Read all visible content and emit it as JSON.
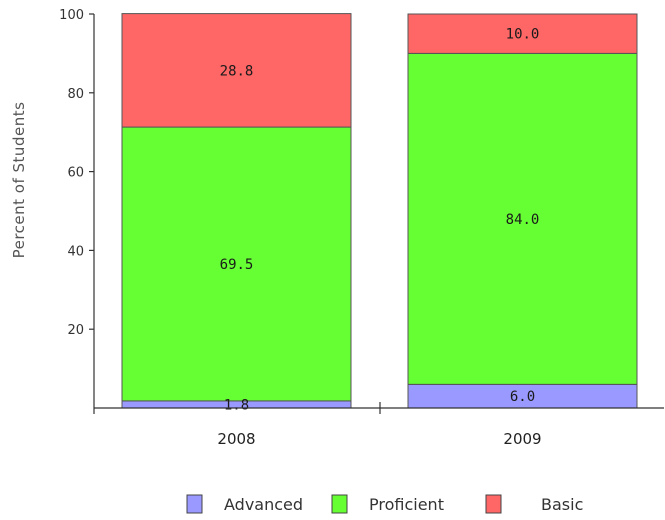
{
  "chart_data": {
    "type": "bar",
    "stacked": true,
    "categories": [
      "2008",
      "2009"
    ],
    "series": [
      {
        "name": "Advanced",
        "color": "#9999ff",
        "values": [
          1.8,
          6.0
        ]
      },
      {
        "name": "Proficient",
        "color": "#66ff33",
        "values": [
          69.5,
          84.0
        ]
      },
      {
        "name": "Basic",
        "color": "#ff6666",
        "values": [
          28.8,
          10.0
        ]
      }
    ],
    "data_labels": [
      [
        "1.8",
        "6.0"
      ],
      [
        "69.5",
        "84.0"
      ],
      [
        "28.8",
        "10.0"
      ]
    ],
    "ylabel": "Percent of Students",
    "ylim": [
      0,
      100
    ],
    "yticks": [
      20,
      40,
      60,
      80,
      100
    ],
    "ytick_labels": [
      "20",
      "40",
      "60",
      "80",
      "100"
    ],
    "grid": false,
    "legend_position": "bottom"
  }
}
